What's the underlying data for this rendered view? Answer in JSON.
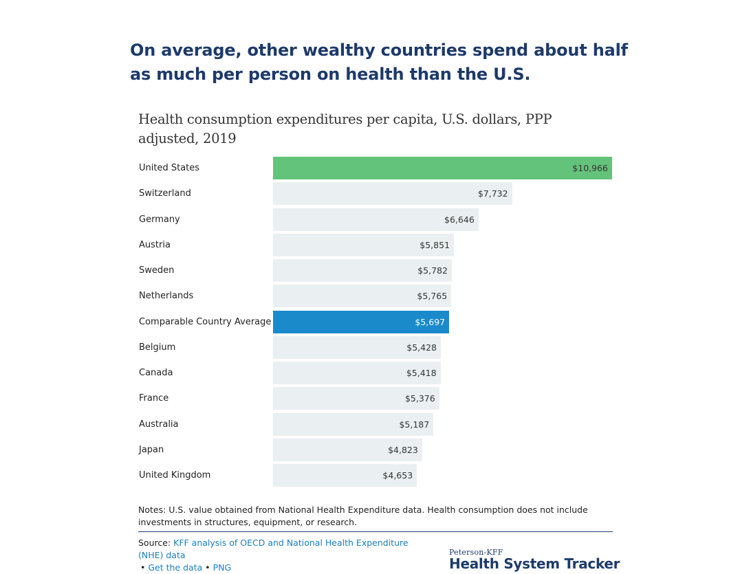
{
  "headline": "On average, other wealthy countries spend about half as much per person on health than the U.S.",
  "chart_data": {
    "type": "bar",
    "orientation": "horizontal",
    "title": "Health consumption expenditures per capita, U.S. dollars, PPP adjusted, 2019",
    "xlim": [
      0,
      10966
    ],
    "grid": false,
    "legend": "none",
    "categories": [
      "United States",
      "Switzerland",
      "Germany",
      "Austria",
      "Sweden",
      "Netherlands",
      "Comparable Country Average",
      "Belgium",
      "Canada",
      "France",
      "Australia",
      "Japan",
      "United Kingdom"
    ],
    "values": [
      10966,
      7732,
      6646,
      5851,
      5782,
      5765,
      5697,
      5428,
      5418,
      5376,
      5187,
      4823,
      4653
    ],
    "value_labels": [
      "$10,966",
      "$7,732",
      "$6,646",
      "$5,851",
      "$5,782",
      "$5,765",
      "$5,697",
      "$5,428",
      "$5,418",
      "$5,376",
      "$5,187",
      "$4,823",
      "$4,653"
    ],
    "colors": {
      "default": "#eaeff1",
      "United States": "#64c37a",
      "Comparable Country Average": "#1a8acb"
    },
    "label_colors": {
      "default": "#333333",
      "Comparable Country Average": "#ffffff"
    }
  },
  "notes": "Notes: U.S. value obtained from National Health Expenditure data. Health consumption does not include investments in structures, equipment, or research.",
  "source": {
    "prefix": "Source: ",
    "link_text": "KFF analysis of OECD and National Health Expenditure (NHE) data",
    "bullet": "•",
    "get_data": "Get the data",
    "png": "PNG"
  },
  "brand": {
    "small": "Peterson-KFF",
    "large": "Health System Tracker"
  }
}
